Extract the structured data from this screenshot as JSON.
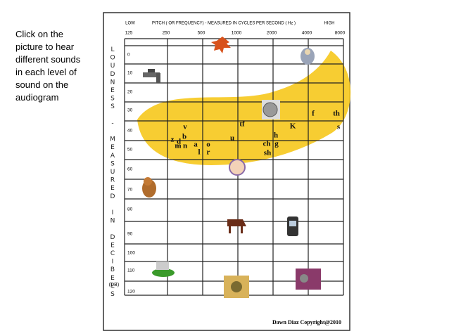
{
  "instructions": [
    "Click on the",
    "picture to hear",
    "different sounds",
    "in each level of",
    "sound on the",
    "audiogram"
  ],
  "audiogram": {
    "low_label": "LOW",
    "title": "PITCH ( OR FREQUENCY) - MEASURED IN CYCLES PER SECOND ( Hz )",
    "high_label": "HIGH",
    "frequencies": [
      "125",
      "250",
      "500",
      "1000",
      "2000",
      "4000",
      "8000"
    ],
    "levels": [
      "0",
      "10",
      "20",
      "30",
      "40",
      "50",
      "60",
      "70",
      "80",
      "90",
      "100",
      "110",
      "120"
    ],
    "axis_label": "LOUDNESS - MEASURED IN DECIBELS",
    "axis_unit": "(DB)",
    "speech_sounds": [
      "v",
      "z",
      "d",
      "b",
      "m",
      "n",
      "a",
      "o",
      "l",
      "r",
      "u",
      "tf",
      "h",
      "ch",
      "g",
      "sh",
      "K",
      "f",
      "th",
      "s"
    ],
    "copyright": "Dawn Diaz Copyright@2010"
  }
}
